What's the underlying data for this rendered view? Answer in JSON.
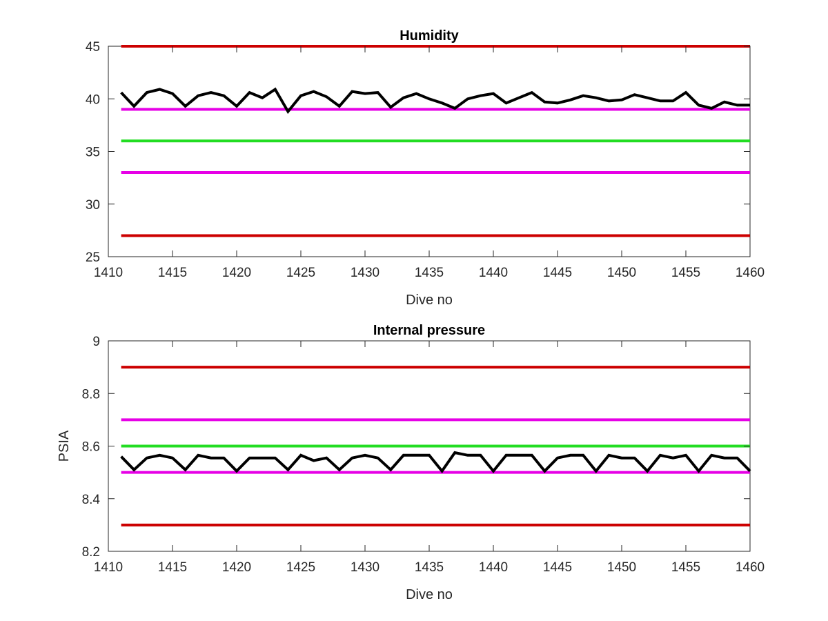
{
  "chart_data": [
    {
      "type": "line",
      "title": "Humidity",
      "xlabel": "Dive no",
      "ylabel": "",
      "xlim": [
        1410,
        1460
      ],
      "ylim": [
        25,
        45
      ],
      "xticks": [
        1410,
        1415,
        1420,
        1425,
        1430,
        1435,
        1440,
        1445,
        1450,
        1455,
        1460
      ],
      "yticks": [
        25,
        30,
        35,
        40,
        45
      ],
      "grid": false,
      "box": true,
      "reference_lines": [
        {
          "y": 45,
          "x_range": [
            1411,
            1460
          ],
          "color": "#cc0000"
        },
        {
          "y": 39,
          "x_range": [
            1411,
            1460
          ],
          "color": "#e600e6"
        },
        {
          "y": 36,
          "x_range": [
            1411,
            1460
          ],
          "color": "#22dd22"
        },
        {
          "y": 33,
          "x_range": [
            1411,
            1460
          ],
          "color": "#e600e6"
        },
        {
          "y": 27,
          "x_range": [
            1411,
            1460
          ],
          "color": "#cc0000"
        }
      ],
      "series": [
        {
          "color": "#000000",
          "x": [
            1411,
            1412,
            1413,
            1414,
            1415,
            1416,
            1417,
            1418,
            1419,
            1420,
            1421,
            1422,
            1423,
            1424,
            1425,
            1426,
            1427,
            1428,
            1429,
            1430,
            1431,
            1432,
            1433,
            1434,
            1435,
            1436,
            1437,
            1438,
            1439,
            1440,
            1441,
            1442,
            1443,
            1444,
            1445,
            1446,
            1447,
            1448,
            1449,
            1450,
            1451,
            1452,
            1453,
            1454,
            1455,
            1456,
            1457,
            1458,
            1459,
            1460
          ],
          "y": [
            40.6,
            39.3,
            40.6,
            40.9,
            40.5,
            39.3,
            40.3,
            40.6,
            40.3,
            39.3,
            40.6,
            40.1,
            40.9,
            38.8,
            40.3,
            40.7,
            40.2,
            39.3,
            40.7,
            40.5,
            40.6,
            39.2,
            40.1,
            40.5,
            40,
            39.6,
            39.1,
            40,
            40.3,
            40.5,
            39.6,
            40.1,
            40.6,
            39.7,
            39.6,
            39.9,
            40.3,
            40.1,
            39.8,
            39.9,
            40.4,
            40.1,
            39.8,
            39.8,
            40.6,
            39.4,
            39.1,
            39.7,
            39.4,
            39.4
          ]
        }
      ]
    },
    {
      "type": "line",
      "title": "Internal pressure",
      "xlabel": "Dive no",
      "ylabel": "PSIA",
      "xlim": [
        1410,
        1460
      ],
      "ylim": [
        8.2,
        9
      ],
      "xticks": [
        1410,
        1415,
        1420,
        1425,
        1430,
        1435,
        1440,
        1445,
        1450,
        1455,
        1460
      ],
      "yticks": [
        8.2,
        8.4,
        8.6,
        8.8,
        9
      ],
      "grid": false,
      "box": true,
      "reference_lines": [
        {
          "y": 8.9,
          "x_range": [
            1411,
            1460
          ],
          "color": "#cc0000"
        },
        {
          "y": 8.7,
          "x_range": [
            1411,
            1460
          ],
          "color": "#e600e6"
        },
        {
          "y": 8.6,
          "x_range": [
            1411,
            1460
          ],
          "color": "#22dd22"
        },
        {
          "y": 8.5,
          "x_range": [
            1411,
            1460
          ],
          "color": "#e600e6"
        },
        {
          "y": 8.3,
          "x_range": [
            1411,
            1460
          ],
          "color": "#cc0000"
        }
      ],
      "series": [
        {
          "color": "#000000",
          "x": [
            1411,
            1412,
            1413,
            1414,
            1415,
            1416,
            1417,
            1418,
            1419,
            1420,
            1421,
            1422,
            1423,
            1424,
            1425,
            1426,
            1427,
            1428,
            1429,
            1430,
            1431,
            1432,
            1433,
            1434,
            1435,
            1436,
            1437,
            1438,
            1439,
            1440,
            1441,
            1442,
            1443,
            1444,
            1445,
            1446,
            1447,
            1448,
            1449,
            1450,
            1451,
            1452,
            1453,
            1454,
            1455,
            1456,
            1457,
            1458,
            1459,
            1460
          ],
          "y": [
            8.56,
            8.51,
            8.555,
            8.565,
            8.555,
            8.51,
            8.565,
            8.555,
            8.555,
            8.505,
            8.555,
            8.555,
            8.555,
            8.51,
            8.565,
            8.545,
            8.555,
            8.51,
            8.555,
            8.565,
            8.555,
            8.51,
            8.565,
            8.565,
            8.565,
            8.505,
            8.575,
            8.565,
            8.565,
            8.505,
            8.565,
            8.565,
            8.565,
            8.505,
            8.555,
            8.565,
            8.565,
            8.505,
            8.565,
            8.555,
            8.555,
            8.505,
            8.565,
            8.555,
            8.565,
            8.505,
            8.565,
            8.555,
            8.555,
            8.505
          ]
        }
      ]
    }
  ]
}
